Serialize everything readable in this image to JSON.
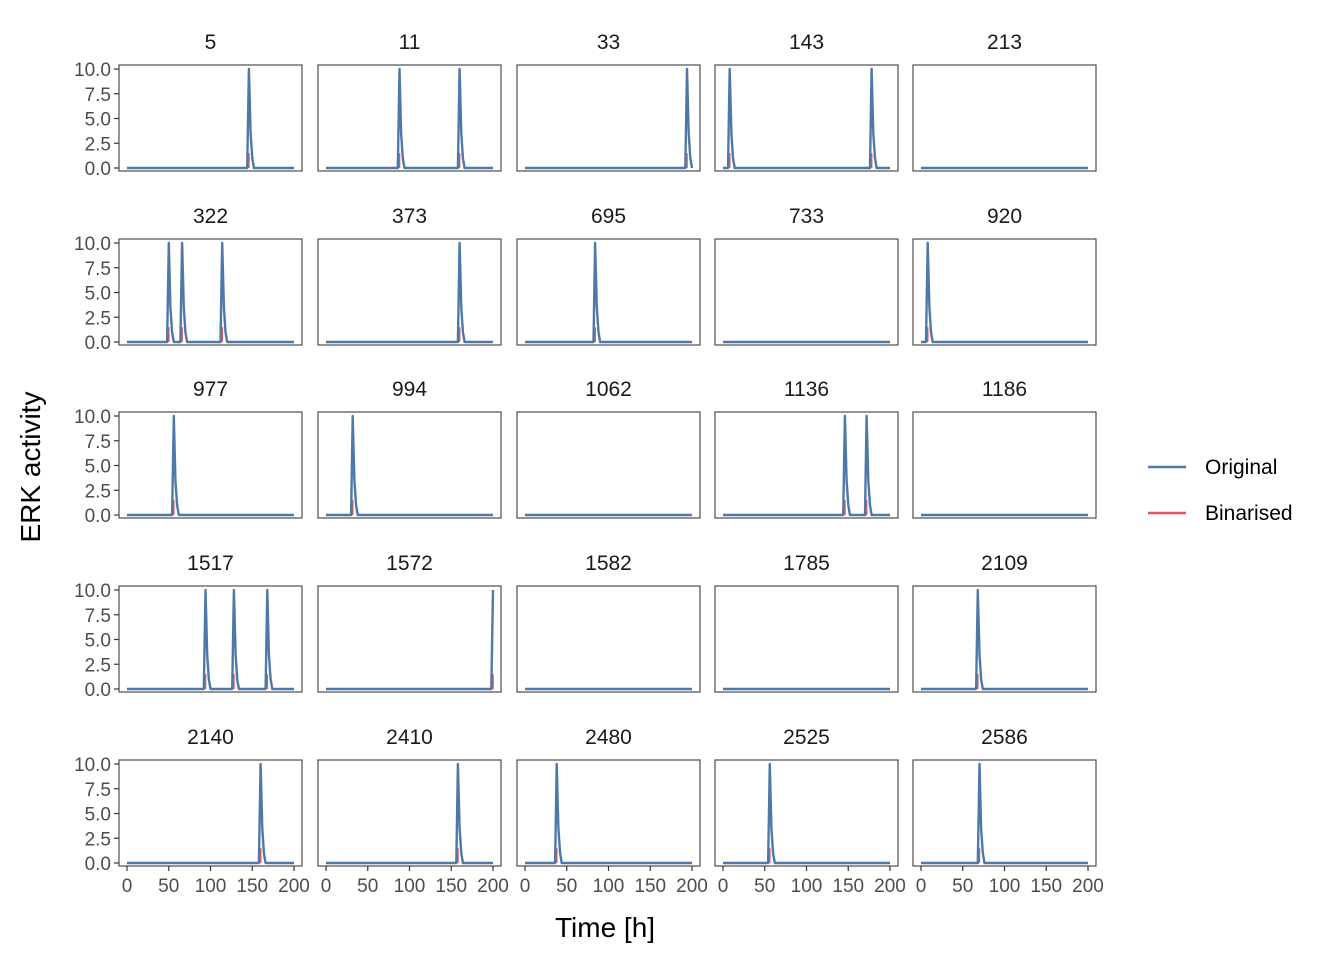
{
  "chart_data": {
    "type": "line",
    "xlabel": "Time [h]",
    "ylabel": "ERK activity",
    "xlim": [
      0,
      200
    ],
    "ylim": [
      0,
      10
    ],
    "x_ticks": [
      0,
      50,
      100,
      150,
      200
    ],
    "x_tick_labels": [
      "0",
      "50",
      "100",
      "150",
      "200"
    ],
    "y_ticks": [
      0,
      2.5,
      5,
      7.5,
      10
    ],
    "y_tick_labels": [
      "0.0",
      "2.5",
      "5.0",
      "7.5",
      "10.0"
    ],
    "grid": false,
    "legend": {
      "placement": "right",
      "entries": [
        {
          "label": "Original",
          "color": "#4E79A7"
        },
        {
          "label": "Binarised",
          "color": "#E15759"
        }
      ]
    },
    "peak_value": 10,
    "binarised_value": 1.5,
    "pulse_shape": [
      10,
      3.5,
      1,
      0
    ],
    "time_step": 2,
    "panels": [
      {
        "title": "5",
        "pulses": [
          146
        ]
      },
      {
        "title": "11",
        "pulses": [
          88,
          160
        ]
      },
      {
        "title": "33",
        "pulses": [
          194
        ]
      },
      {
        "title": "143",
        "pulses": [
          8,
          178
        ]
      },
      {
        "title": "213",
        "pulses": []
      },
      {
        "title": "322",
        "pulses": [
          50,
          66,
          114
        ]
      },
      {
        "title": "373",
        "pulses": [
          160
        ]
      },
      {
        "title": "695",
        "pulses": [
          84
        ]
      },
      {
        "title": "733",
        "pulses": []
      },
      {
        "title": "920",
        "pulses": [
          8
        ]
      },
      {
        "title": "977",
        "pulses": [
          56
        ]
      },
      {
        "title": "994",
        "pulses": [
          32
        ]
      },
      {
        "title": "1062",
        "pulses": []
      },
      {
        "title": "1136",
        "pulses": [
          146,
          172
        ]
      },
      {
        "title": "1186",
        "pulses": []
      },
      {
        "title": "1517",
        "pulses": [
          94,
          128,
          168
        ]
      },
      {
        "title": "1572",
        "pulses": [
          200
        ]
      },
      {
        "title": "1582",
        "pulses": []
      },
      {
        "title": "1785",
        "pulses": []
      },
      {
        "title": "2109",
        "pulses": [
          68
        ]
      },
      {
        "title": "2140",
        "pulses": [
          160
        ]
      },
      {
        "title": "2410",
        "pulses": [
          158
        ]
      },
      {
        "title": "2480",
        "pulses": [
          38
        ]
      },
      {
        "title": "2525",
        "pulses": [
          56
        ]
      },
      {
        "title": "2586",
        "pulses": [
          70
        ]
      }
    ]
  }
}
